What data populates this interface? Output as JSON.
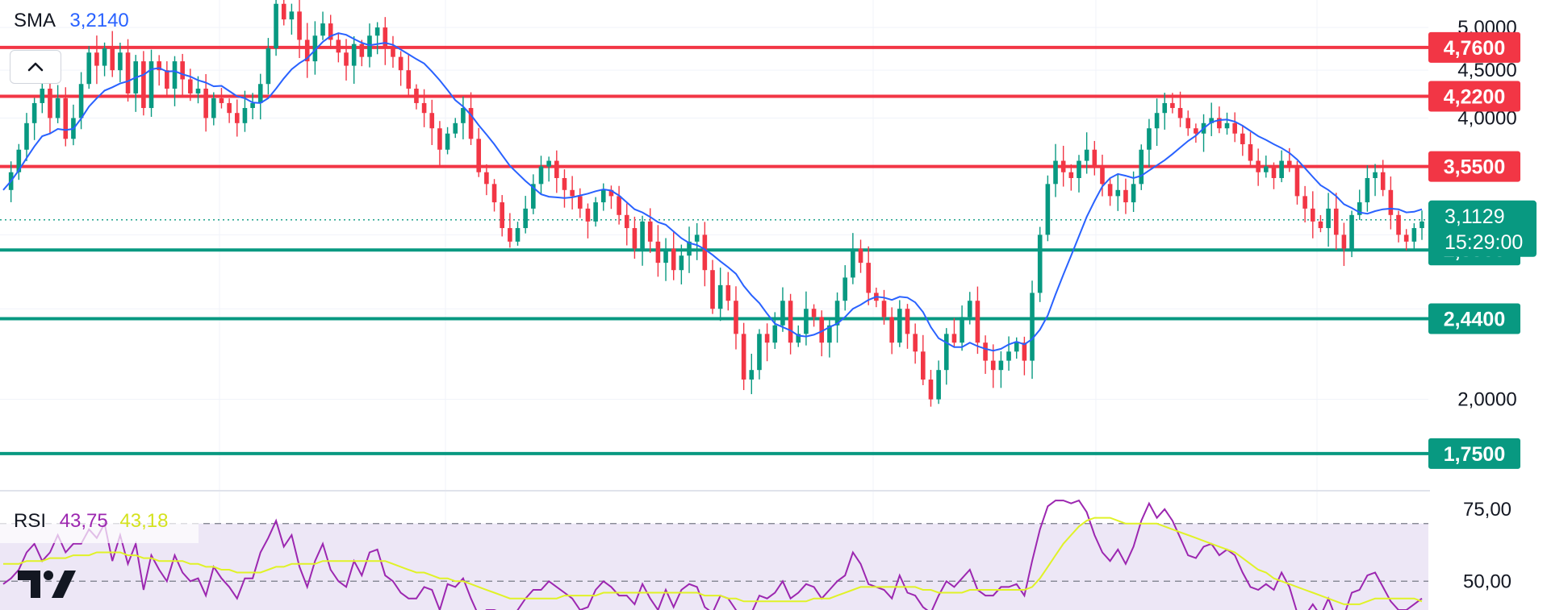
{
  "indicators": {
    "sma": {
      "label": "SMA",
      "value": "3,2140",
      "color": "#2962ff"
    },
    "rsi": {
      "label": "RSI",
      "value": "43,75",
      "signal": "43,18",
      "color": "#9c27b0",
      "signal_color": "#e0f227"
    }
  },
  "colors": {
    "up": "#089981",
    "down": "#f23645",
    "resistance": "#f23645",
    "support": "#089981",
    "sma": "#2962ff",
    "rsi": "#9c27b0",
    "rsi_ma": "#e0f227",
    "rsi_band": "#ede7f6",
    "grid": "#f0f3fa",
    "text": "#131722"
  },
  "chart_data": [
    {
      "type": "candlestick",
      "title": "",
      "ylim": [
        1.6,
        5.35
      ],
      "price_ticks": [
        "5,0000",
        "4,5000",
        "4,0000",
        "2,0000"
      ],
      "price_tick_values": [
        5.0,
        4.5,
        4.0,
        2.0
      ],
      "current_price": {
        "label": "3,1129",
        "value": 3.1129,
        "countdown": "15:29:00"
      },
      "levels": [
        {
          "label": "4,7600",
          "value": 4.76,
          "kind": "resistance"
        },
        {
          "label": "4,2200",
          "value": 4.22,
          "kind": "resistance"
        },
        {
          "label": "3,5500",
          "value": 3.55,
          "kind": "resistance"
        },
        {
          "label": "2,8900",
          "value": 2.89,
          "kind": "support"
        },
        {
          "label": "2,4400",
          "value": 2.44,
          "kind": "support"
        },
        {
          "label": "1,7500",
          "value": 1.75,
          "kind": "support"
        }
      ],
      "close_series": [
        3.35,
        3.5,
        3.7,
        3.95,
        4.15,
        4.3,
        4.0,
        4.2,
        3.8,
        4.0,
        4.35,
        4.7,
        4.55,
        4.75,
        4.5,
        4.7,
        4.25,
        4.6,
        4.1,
        4.6,
        4.5,
        4.3,
        4.6,
        4.4,
        4.25,
        4.3,
        4.0,
        4.2,
        4.15,
        4.05,
        3.95,
        4.1,
        4.15,
        4.35,
        4.75,
        5.3,
        5.1,
        5.2,
        4.85,
        4.6,
        4.9,
        5.05,
        4.85,
        4.7,
        4.55,
        4.8,
        4.65,
        4.9,
        5.0,
        4.75,
        4.65,
        4.5,
        4.3,
        4.15,
        4.05,
        3.9,
        3.7,
        3.85,
        3.95,
        4.1,
        3.8,
        3.5,
        3.4,
        3.25,
        3.05,
        2.95,
        3.05,
        3.2,
        3.4,
        3.55,
        3.6,
        3.45,
        3.35,
        3.3,
        3.2,
        3.1,
        3.25,
        3.35,
        3.3,
        3.15,
        3.05,
        2.9,
        3.1,
        2.95,
        2.8,
        2.9,
        2.75,
        2.85,
        2.95,
        3.0,
        2.75,
        2.5,
        2.65,
        2.55,
        2.35,
        2.1,
        2.15,
        2.35,
        2.3,
        2.4,
        2.55,
        2.3,
        2.35,
        2.5,
        2.45,
        2.3,
        2.4,
        2.55,
        2.7,
        2.9,
        2.8,
        2.6,
        2.55,
        2.45,
        2.3,
        2.5,
        2.35,
        2.25,
        2.1,
        2.0,
        2.15,
        2.35,
        2.3,
        2.45,
        2.55,
        2.3,
        2.2,
        2.15,
        2.2,
        2.25,
        2.3,
        2.2,
        2.6,
        3.0,
        3.4,
        3.6,
        3.5,
        3.45,
        3.6,
        3.7,
        3.55,
        3.4,
        3.3,
        3.35,
        3.25,
        3.4,
        3.7,
        3.9,
        4.05,
        4.15,
        4.1,
        4.0,
        3.9,
        3.85,
        3.95,
        4.0,
        3.9,
        3.95,
        3.85,
        3.75,
        3.6,
        3.5,
        3.55,
        3.45,
        3.6,
        3.55,
        3.3,
        3.2,
        3.1,
        3.05,
        3.2,
        3.0,
        2.9,
        3.15,
        3.25,
        3.45,
        3.5,
        3.35,
        3.15,
        3.0,
        2.95,
        3.05,
        3.1
      ]
    },
    {
      "type": "line",
      "title": "",
      "ylim": [
        40,
        80
      ],
      "ticks": [
        "75,00",
        "50,00"
      ],
      "tick_values": [
        75,
        50
      ],
      "bands": [
        70,
        50
      ],
      "series": [
        {
          "name": "RSI",
          "values": [
            49,
            51,
            54,
            60,
            63,
            57,
            60,
            66,
            60,
            63,
            63,
            68,
            65,
            70,
            57,
            66,
            56,
            63,
            47,
            59,
            54,
            50,
            59,
            53,
            50,
            51,
            45,
            55,
            51,
            48,
            44,
            51,
            51,
            60,
            65,
            71,
            62,
            66,
            55,
            48,
            57,
            63,
            54,
            50,
            48,
            57,
            52,
            60,
            61,
            52,
            50,
            46,
            44,
            44,
            48,
            47,
            40,
            49,
            48,
            51,
            44,
            38,
            40,
            40,
            39,
            36,
            40,
            44,
            47,
            47,
            50,
            48,
            46,
            44,
            40,
            41,
            47,
            50,
            48,
            45,
            45,
            42,
            49,
            44,
            40,
            47,
            41,
            47,
            49,
            48,
            41,
            39,
            45,
            44,
            40,
            36,
            39,
            45,
            44,
            46,
            50,
            44,
            46,
            49,
            48,
            44,
            47,
            50,
            52,
            60,
            56,
            49,
            48,
            47,
            44,
            52,
            46,
            45,
            41,
            39,
            45,
            50,
            48,
            51,
            54,
            47,
            45,
            45,
            48,
            48,
            49,
            45,
            57,
            68,
            76,
            78,
            78,
            77,
            78,
            74,
            66,
            60,
            57,
            61,
            56,
            62,
            71,
            77,
            72,
            75,
            71,
            65,
            59,
            58,
            62,
            63,
            59,
            61,
            59,
            53,
            48,
            47,
            49,
            47,
            53,
            48,
            39,
            38,
            42,
            38,
            44,
            37,
            38,
            46,
            47,
            52,
            53,
            48,
            43,
            40,
            40,
            42,
            44
          ]
        },
        {
          "name": "MA",
          "values": [
            56,
            56,
            56,
            57,
            57,
            57,
            58,
            58,
            58,
            59,
            59,
            59,
            60,
            60,
            60,
            60,
            59,
            59,
            58,
            58,
            57,
            57,
            57,
            57,
            56,
            56,
            55,
            55,
            54,
            54,
            53,
            53,
            53,
            53,
            54,
            55,
            55,
            56,
            56,
            56,
            56,
            57,
            57,
            57,
            57,
            57,
            57,
            57,
            57,
            57,
            56,
            55,
            54,
            53,
            53,
            52,
            51,
            51,
            50,
            50,
            49,
            48,
            47,
            46,
            45,
            44,
            44,
            44,
            44,
            44,
            44,
            44,
            45,
            45,
            45,
            45,
            45,
            46,
            46,
            46,
            46,
            46,
            46,
            46,
            46,
            46,
            46,
            46,
            46,
            46,
            45,
            45,
            45,
            44,
            44,
            43,
            43,
            43,
            43,
            43,
            43,
            43,
            43,
            43,
            44,
            44,
            44,
            45,
            46,
            47,
            48,
            48,
            48,
            48,
            48,
            48,
            48,
            48,
            47,
            47,
            46,
            46,
            46,
            46,
            47,
            47,
            47,
            47,
            47,
            47,
            47,
            47,
            48,
            51,
            55,
            59,
            63,
            66,
            69,
            71,
            72,
            72,
            72,
            71,
            70,
            70,
            70,
            70,
            70,
            69,
            68,
            67,
            66,
            65,
            64,
            63,
            62,
            61,
            60,
            58,
            56,
            54,
            53,
            51,
            50,
            49,
            48,
            47,
            46,
            45,
            44,
            43,
            42,
            42,
            42,
            43,
            44,
            44,
            44,
            44,
            44,
            44,
            43
          ]
        }
      ]
    }
  ]
}
